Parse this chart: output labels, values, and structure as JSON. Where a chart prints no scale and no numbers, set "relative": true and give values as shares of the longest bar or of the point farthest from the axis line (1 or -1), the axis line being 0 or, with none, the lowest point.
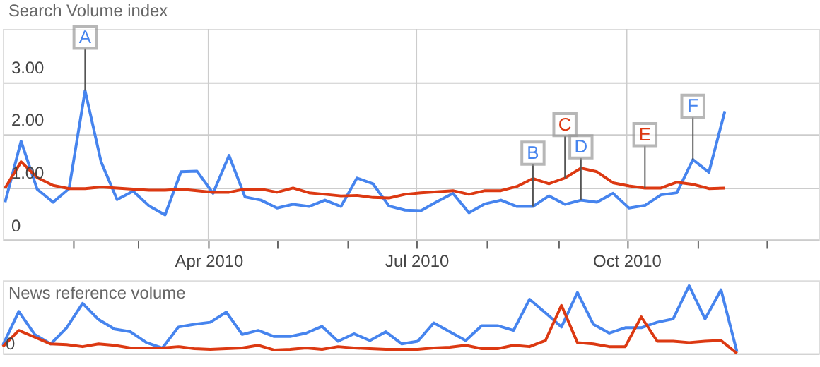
{
  "chart_data": [
    {
      "type": "line",
      "ylabel": "Search Volume index",
      "x": [
        "2010-01-02",
        "2010-01-09",
        "2010-01-16",
        "2010-01-23",
        "2010-01-30",
        "2010-02-06",
        "2010-02-13",
        "2010-02-20",
        "2010-02-27",
        "2010-03-06",
        "2010-03-13",
        "2010-03-20",
        "2010-03-27",
        "2010-04-03",
        "2010-04-10",
        "2010-04-17",
        "2010-04-24",
        "2010-05-01",
        "2010-05-08",
        "2010-05-15",
        "2010-05-22",
        "2010-05-29",
        "2010-06-05",
        "2010-06-12",
        "2010-06-19",
        "2010-06-26",
        "2010-07-03",
        "2010-07-10",
        "2010-07-17",
        "2010-07-24",
        "2010-07-31",
        "2010-08-07",
        "2010-08-14",
        "2010-08-21",
        "2010-08-28",
        "2010-09-04",
        "2010-09-11",
        "2010-09-18",
        "2010-09-25",
        "2010-10-02",
        "2010-10-09",
        "2010-10-16",
        "2010-10-23",
        "2010-10-30",
        "2010-11-06",
        "2010-11-13"
      ],
      "series": [
        {
          "color": "#4684ee",
          "values": [
            0.71,
            1.87,
            0.96,
            0.71,
            0.97,
            2.83,
            1.48,
            0.76,
            0.92,
            0.64,
            0.47,
            1.29,
            1.3,
            0.88,
            1.6,
            0.81,
            0.75,
            0.6,
            0.67,
            0.63,
            0.75,
            0.63,
            1.17,
            1.06,
            0.64,
            0.56,
            0.55,
            0.72,
            0.88,
            0.51,
            0.68,
            0.75,
            0.63,
            0.63,
            0.83,
            0.67,
            0.75,
            0.71,
            0.88,
            0.6,
            0.65,
            0.85,
            0.89,
            1.52,
            1.28,
            2.44
          ]
        },
        {
          "color": "#dc3912",
          "values": [
            0.98,
            1.48,
            1.18,
            1.03,
            0.97,
            0.97,
            1.0,
            0.98,
            0.96,
            0.94,
            0.94,
            0.96,
            0.93,
            0.9,
            0.9,
            0.96,
            0.96,
            0.9,
            0.98,
            0.89,
            0.86,
            0.83,
            0.84,
            0.8,
            0.79,
            0.86,
            0.89,
            0.91,
            0.93,
            0.86,
            0.93,
            0.93,
            1.01,
            1.16,
            1.06,
            1.17,
            1.36,
            1.29,
            1.08,
            1.02,
            0.98,
            0.98,
            1.09,
            1.05,
            0.97,
            0.98
          ]
        }
      ],
      "xlim": [
        "2010-01-01",
        "2010-12-24"
      ],
      "xticks": [
        {
          "value": "2010-02",
          "label": null
        },
        {
          "value": "2010-03",
          "label": null
        },
        {
          "value": "2010-04",
          "label": "Apr 2010"
        },
        {
          "value": "2010-05",
          "label": null
        },
        {
          "value": "2010-06",
          "label": null
        },
        {
          "value": "2010-07",
          "label": "Jul 2010"
        },
        {
          "value": "2010-08",
          "label": null
        },
        {
          "value": "2010-09",
          "label": null
        },
        {
          "value": "2010-10",
          "label": "Oct 2010"
        },
        {
          "value": "2010-11",
          "label": null
        },
        {
          "value": "2010-12",
          "label": null
        }
      ],
      "ylim": [
        0,
        4
      ],
      "yticks": [
        0,
        {
          "value": 1,
          "label": "1.00"
        },
        {
          "value": 2,
          "label": "2.00"
        },
        {
          "value": 3,
          "label": "3.00"
        }
      ],
      "grid": true,
      "annotations": [
        {
          "text": "A",
          "x": "2010-02-06",
          "y": 2.83
        },
        {
          "text": "B",
          "x": "2010-08-21",
          "y": 0.63
        },
        {
          "text": "C",
          "x": "2010-09-04",
          "y": 1.17
        },
        {
          "text": "D",
          "x": "2010-09-11",
          "y": 0.75
        },
        {
          "text": "E",
          "x": "2010-10-09",
          "y": 0.98
        },
        {
          "text": "F",
          "x": "2010-10-30",
          "y": 1.52
        }
      ]
    },
    {
      "type": "line",
      "ylabel": "News reference volume",
      "relative": true,
      "categories": [
        null,
        null,
        null,
        null,
        null,
        null,
        null,
        null,
        null,
        null,
        null,
        null,
        null,
        null,
        null,
        null,
        null,
        null,
        null,
        null,
        null,
        null,
        null,
        null,
        null,
        null,
        null,
        null,
        null,
        null,
        null,
        null,
        null,
        null,
        null,
        null,
        null,
        null,
        null,
        null,
        null,
        null,
        null,
        null,
        null,
        null,
        null
      ],
      "series": [
        {
          "color": "#4684ee",
          "values": [
            0.12,
            0.62,
            0.28,
            0.14,
            0.38,
            0.74,
            0.5,
            0.36,
            0.32,
            0.16,
            0.08,
            0.39,
            0.43,
            0.46,
            0.61,
            0.28,
            0.34,
            0.25,
            0.25,
            0.3,
            0.4,
            0.18,
            0.29,
            0.19,
            0.32,
            0.14,
            0.18,
            0.45,
            0.32,
            0.19,
            0.41,
            0.41,
            0.34,
            0.8,
            0.6,
            0.39,
            0.9,
            0.43,
            0.3,
            0.38,
            0.38,
            0.46,
            0.51,
            1.0,
            0.51,
            0.94,
            0.02
          ]
        },
        {
          "color": "#dc3912",
          "values": [
            0.1,
            0.34,
            0.24,
            0.14,
            0.13,
            0.1,
            0.14,
            0.12,
            0.08,
            0.08,
            0.08,
            0.1,
            0.07,
            0.06,
            0.07,
            0.08,
            0.12,
            0.05,
            0.06,
            0.08,
            0.06,
            0.1,
            0.08,
            0.07,
            0.06,
            0.06,
            0.06,
            0.08,
            0.09,
            0.12,
            0.07,
            0.07,
            0.12,
            0.1,
            0.19,
            0.71,
            0.16,
            0.14,
            0.1,
            0.1,
            0.54,
            0.18,
            0.18,
            0.16,
            0.18,
            0.19,
            0
          ]
        }
      ],
      "annotations": [
        "0"
      ]
    }
  ]
}
